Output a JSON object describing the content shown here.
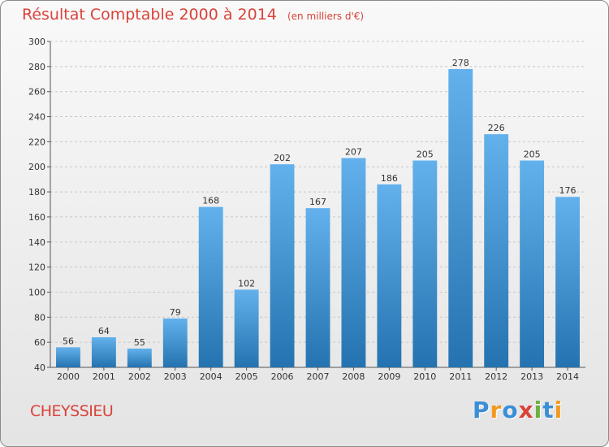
{
  "title": "Résultat Comptable 2000 à 2014",
  "subtitle": "(en milliers d'€)",
  "commune": "CHEYSSIEU",
  "logo": {
    "text": "Proxiti",
    "letters": [
      {
        "ch": "P",
        "color": "#3a8fd6"
      },
      {
        "ch": "r",
        "color": "#f29a1f"
      },
      {
        "ch": "o",
        "color": "#3a8fd6"
      },
      {
        "ch": "x",
        "color": "#d9433a"
      },
      {
        "ch": "i",
        "color": "#6ab23e"
      },
      {
        "ch": "t",
        "color": "#3a8fd6"
      },
      {
        "ch": "i",
        "color": "#f29a1f"
      }
    ]
  },
  "colors": {
    "bar_top": "#63b1ec",
    "bar_bottom": "#2473b0",
    "grid": "#c8c8c8",
    "axis": "#555555"
  },
  "chart_data": {
    "type": "bar",
    "categories": [
      "2000",
      "2001",
      "2002",
      "2003",
      "2004",
      "2005",
      "2006",
      "2007",
      "2008",
      "2009",
      "2010",
      "2011",
      "2012",
      "2013",
      "2014"
    ],
    "values": [
      56,
      64,
      55,
      79,
      168,
      102,
      202,
      167,
      207,
      186,
      205,
      278,
      226,
      205,
      176
    ],
    "ylim": [
      40,
      300
    ],
    "yticks": [
      40,
      60,
      80,
      100,
      120,
      140,
      160,
      180,
      200,
      220,
      240,
      260,
      280,
      300
    ],
    "grid": true,
    "legend": "none"
  }
}
